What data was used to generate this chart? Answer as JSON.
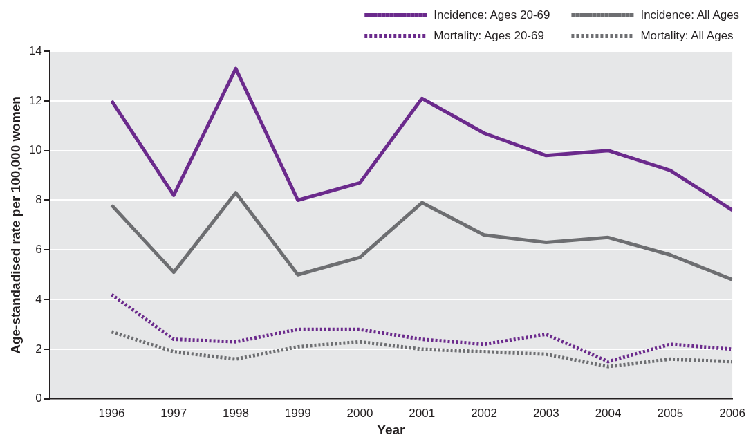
{
  "chart_data": {
    "type": "line",
    "xlabel": "Year",
    "ylabel": "Age-standadised rate per 100,000 women",
    "x": [
      1996,
      1997,
      1998,
      1999,
      2000,
      2001,
      2002,
      2003,
      2004,
      2005,
      2006
    ],
    "xlim": [
      1995,
      2006
    ],
    "xticks": [
      1996,
      1997,
      1998,
      1999,
      2000,
      2001,
      2002,
      2003,
      2004,
      2005,
      2006
    ],
    "ylim": [
      0,
      14
    ],
    "yticks": [
      0,
      2,
      4,
      6,
      8,
      10,
      12,
      14
    ],
    "grid": "y",
    "legend": "top right",
    "marker": "none",
    "series": [
      {
        "name": "Incidence: Ages 20-69",
        "color": "#6b2a8c",
        "line_style": "solid",
        "values": [
          12.0,
          8.2,
          13.3,
          8.0,
          8.7,
          12.1,
          10.7,
          9.8,
          10.0,
          9.2,
          7.6
        ]
      },
      {
        "name": "Incidence: All Ages",
        "color": "#6d6e71",
        "line_style": "solid",
        "values": [
          7.8,
          5.1,
          8.3,
          5.0,
          5.7,
          7.9,
          6.6,
          6.3,
          6.5,
          5.8,
          4.8
        ]
      },
      {
        "name": "Mortality: Ages 20-69",
        "color": "#6b2a8c",
        "line_style": "dotted",
        "values": [
          4.2,
          2.4,
          2.3,
          2.8,
          2.8,
          2.4,
          2.2,
          2.6,
          1.5,
          2.2,
          2.0
        ]
      },
      {
        "name": "Mortality: All Ages",
        "color": "#6d6e71",
        "line_style": "dotted",
        "values": [
          2.7,
          1.9,
          1.6,
          2.1,
          2.3,
          2.0,
          1.9,
          1.8,
          1.3,
          1.6,
          1.5
        ]
      }
    ]
  }
}
